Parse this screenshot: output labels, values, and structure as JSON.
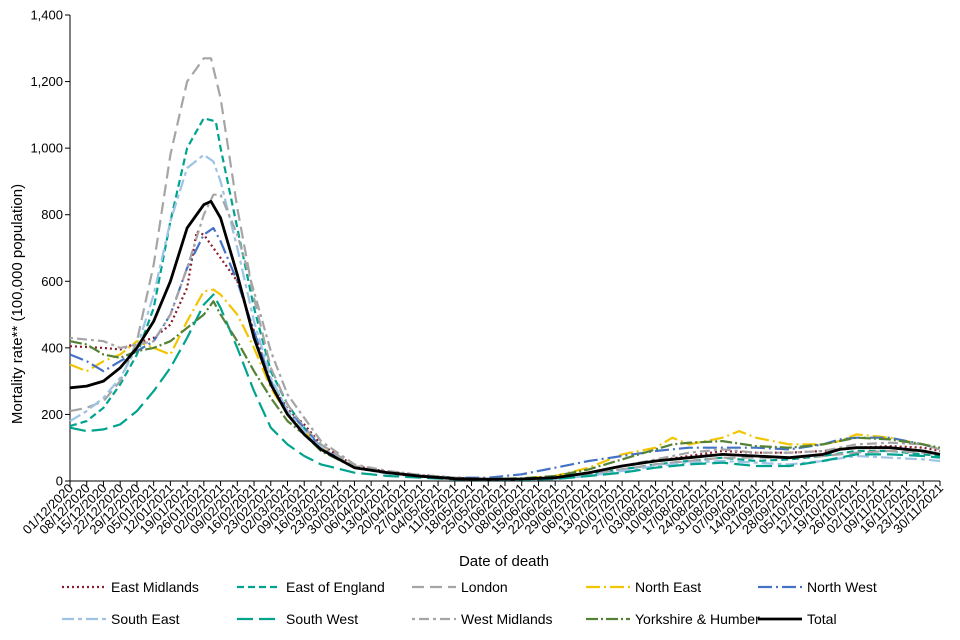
{
  "chart_data": {
    "type": "line",
    "title": "",
    "xlabel": "Date of death",
    "ylabel": "Mortality rate** (100,000 population)",
    "ylim": [
      0,
      1400
    ],
    "yticks": [
      0,
      200,
      400,
      600,
      800,
      1000,
      1200,
      1400
    ],
    "ytick_labels": [
      "0",
      "200",
      "400",
      "600",
      "800",
      "1,000",
      "1,200",
      "1,400"
    ],
    "x_day_range": [
      0,
      364
    ],
    "xtick_labels": [
      "01/12/2020",
      "08/12/2020",
      "15/12/2020",
      "22/12/2020",
      "29/12/2020",
      "05/01/2021",
      "12/01/2021",
      "19/01/2021",
      "26/01/2021",
      "02/02/2021",
      "09/02/2021",
      "16/02/2021",
      "23/02/2021",
      "02/03/2021",
      "09/03/2021",
      "16/03/2021",
      "23/03/2021",
      "30/03/2021",
      "06/04/2021",
      "13/04/2021",
      "20/04/2021",
      "27/04/2021",
      "04/05/2021",
      "11/05/2021",
      "18/05/2021",
      "25/05/2021",
      "01/06/2021",
      "08/06/2021",
      "15/06/2021",
      "22/06/2021",
      "29/06/2021",
      "06/07/2021",
      "13/07/2021",
      "20/07/2021",
      "27/07/2021",
      "03/08/2021",
      "10/08/2021",
      "17/08/2021",
      "24/08/2021",
      "31/08/2021",
      "07/09/2021",
      "14/09/2021",
      "21/09/2021",
      "28/09/2021",
      "05/10/2021",
      "12/10/2021",
      "19/10/2021",
      "26/10/2021",
      "02/11/2021",
      "09/11/2021",
      "16/11/2021",
      "23/11/2021",
      "30/11/2021"
    ],
    "legend_position": "bottom",
    "series": [
      {
        "name": "East Midlands",
        "color": "#8B1A2B",
        "dash": "2,3",
        "width": 2.2,
        "x": [
          0,
          14,
          21,
          28,
          35,
          42,
          49,
          53,
          56,
          60,
          63,
          70,
          77,
          84,
          91,
          98,
          105,
          119,
          133,
          147,
          161,
          175,
          189,
          203,
          217,
          231,
          245,
          259,
          273,
          287,
          301,
          315,
          329,
          343,
          357,
          364
        ],
        "y": [
          405,
          400,
          395,
          415,
          430,
          470,
          580,
          750,
          740,
          700,
          670,
          600,
          450,
          300,
          215,
          170,
          110,
          45,
          28,
          18,
          10,
          6,
          6,
          10,
          25,
          45,
          60,
          75,
          90,
          85,
          85,
          90,
          100,
          105,
          100,
          90
        ]
      },
      {
        "name": "East of England",
        "color": "#00A38E",
        "dash": "7,4",
        "width": 2.2,
        "x": [
          0,
          7,
          14,
          21,
          28,
          35,
          42,
          49,
          56,
          61,
          63,
          70,
          77,
          84,
          91,
          98,
          105,
          119,
          133,
          147,
          161,
          175,
          189,
          203,
          217,
          231,
          245,
          259,
          273,
          287,
          301,
          315,
          329,
          343,
          357,
          364
        ],
        "y": [
          165,
          180,
          220,
          290,
          380,
          520,
          780,
          1000,
          1090,
          1080,
          1000,
          760,
          520,
          330,
          230,
          160,
          100,
          40,
          25,
          15,
          8,
          5,
          5,
          8,
          20,
          35,
          50,
          60,
          70,
          60,
          65,
          75,
          90,
          90,
          80,
          75
        ]
      },
      {
        "name": "London",
        "color": "#A5A5A5",
        "dash": "12,6",
        "width": 2.2,
        "x": [
          0,
          7,
          14,
          21,
          28,
          35,
          42,
          49,
          56,
          59,
          63,
          70,
          77,
          84,
          91,
          98,
          105,
          119,
          133,
          147,
          161,
          175,
          189,
          203,
          217,
          231,
          245,
          259,
          273,
          287,
          301,
          315,
          329,
          343,
          357,
          364
        ],
        "y": [
          210,
          220,
          240,
          300,
          420,
          650,
          980,
          1200,
          1270,
          1270,
          1150,
          820,
          550,
          340,
          230,
          160,
          110,
          45,
          25,
          15,
          8,
          5,
          5,
          8,
          20,
          35,
          50,
          60,
          70,
          70,
          70,
          75,
          85,
          90,
          85,
          80
        ]
      },
      {
        "name": "North East",
        "color": "#F2C500",
        "dash": "14,4,2,4",
        "width": 2.2,
        "x": [
          0,
          7,
          14,
          21,
          28,
          35,
          42,
          49,
          56,
          60,
          63,
          70,
          77,
          84,
          91,
          98,
          105,
          119,
          133,
          147,
          161,
          175,
          189,
          203,
          217,
          231,
          245,
          252,
          259,
          266,
          273,
          280,
          287,
          301,
          315,
          322,
          329,
          343,
          357,
          364
        ],
        "y": [
          350,
          330,
          360,
          380,
          420,
          400,
          380,
          480,
          570,
          575,
          560,
          500,
          400,
          280,
          200,
          150,
          100,
          40,
          25,
          15,
          8,
          5,
          8,
          15,
          40,
          80,
          100,
          130,
          110,
          120,
          130,
          150,
          130,
          110,
          110,
          120,
          140,
          130,
          110,
          95
        ]
      },
      {
        "name": "North West",
        "color": "#4472C4",
        "dash": "14,4,2,4",
        "width": 2.2,
        "x": [
          0,
          7,
          14,
          21,
          28,
          35,
          42,
          49,
          56,
          60,
          63,
          70,
          77,
          84,
          91,
          98,
          105,
          119,
          133,
          147,
          161,
          175,
          189,
          203,
          217,
          231,
          245,
          259,
          273,
          287,
          301,
          315,
          322,
          329,
          343,
          357,
          364
        ],
        "y": [
          380,
          360,
          330,
          360,
          390,
          420,
          500,
          640,
          740,
          760,
          720,
          600,
          450,
          300,
          210,
          160,
          100,
          40,
          25,
          15,
          10,
          10,
          20,
          40,
          60,
          75,
          90,
          100,
          100,
          100,
          95,
          110,
          125,
          130,
          130,
          110,
          95
        ]
      },
      {
        "name": "South East",
        "color": "#9DC3E6",
        "dash": "12,4,4,4",
        "width": 2.2,
        "x": [
          0,
          7,
          14,
          21,
          28,
          35,
          42,
          49,
          56,
          60,
          63,
          70,
          77,
          84,
          91,
          98,
          105,
          119,
          133,
          147,
          161,
          175,
          189,
          203,
          217,
          231,
          245,
          259,
          273,
          287,
          301,
          315,
          329,
          343,
          357,
          364
        ],
        "y": [
          180,
          210,
          250,
          310,
          400,
          560,
          780,
          940,
          980,
          960,
          900,
          700,
          480,
          310,
          210,
          150,
          100,
          40,
          22,
          12,
          6,
          4,
          4,
          6,
          15,
          30,
          45,
          55,
          60,
          55,
          50,
          60,
          75,
          70,
          65,
          60
        ]
      },
      {
        "name": "South West",
        "color": "#00A38E",
        "dash": "16,6",
        "width": 2.2,
        "x": [
          0,
          7,
          14,
          21,
          28,
          35,
          42,
          49,
          56,
          60,
          63,
          70,
          77,
          84,
          91,
          98,
          105,
          119,
          133,
          147,
          161,
          175,
          189,
          203,
          217,
          231,
          245,
          259,
          273,
          287,
          301,
          315,
          329,
          343,
          357,
          364
        ],
        "y": [
          160,
          150,
          155,
          170,
          210,
          270,
          340,
          430,
          530,
          560,
          520,
          400,
          270,
          160,
          110,
          75,
          50,
          25,
          15,
          10,
          5,
          4,
          4,
          6,
          15,
          25,
          40,
          50,
          55,
          45,
          45,
          60,
          80,
          80,
          75,
          70
        ]
      },
      {
        "name": "West Midlands",
        "color": "#A5A5A5",
        "dash": "3,4,10,4",
        "width": 2.2,
        "x": [
          0,
          14,
          21,
          28,
          35,
          42,
          49,
          56,
          60,
          63,
          70,
          77,
          84,
          91,
          98,
          105,
          119,
          133,
          147,
          161,
          175,
          189,
          203,
          217,
          231,
          245,
          259,
          273,
          287,
          301,
          315,
          329,
          343,
          357,
          364
        ],
        "y": [
          430,
          420,
          400,
          410,
          420,
          500,
          640,
          800,
          860,
          860,
          740,
          570,
          390,
          260,
          190,
          120,
          50,
          30,
          18,
          10,
          6,
          6,
          10,
          25,
          45,
          65,
          85,
          95,
          85,
          85,
          90,
          110,
          115,
          110,
          95
        ]
      },
      {
        "name": "Yorkshire & Humber",
        "color": "#548235",
        "dash": "12,3,2,3",
        "width": 2.2,
        "x": [
          0,
          7,
          14,
          21,
          28,
          35,
          42,
          49,
          56,
          60,
          63,
          70,
          77,
          84,
          91,
          98,
          105,
          119,
          133,
          147,
          161,
          175,
          189,
          203,
          217,
          231,
          245,
          252,
          259,
          273,
          287,
          301,
          315,
          329,
          343,
          357,
          364
        ],
        "y": [
          420,
          410,
          380,
          370,
          390,
          400,
          420,
          460,
          500,
          540,
          500,
          420,
          330,
          250,
          180,
          140,
          90,
          40,
          25,
          15,
          8,
          6,
          8,
          15,
          35,
          65,
          95,
          110,
          115,
          120,
          105,
          100,
          110,
          130,
          125,
          110,
          100
        ]
      },
      {
        "name": "Total",
        "color": "#000000",
        "dash": "",
        "width": 2.8,
        "x": [
          0,
          7,
          14,
          21,
          28,
          35,
          42,
          49,
          56,
          59,
          63,
          70,
          77,
          84,
          91,
          98,
          105,
          119,
          133,
          147,
          161,
          175,
          189,
          203,
          217,
          231,
          245,
          259,
          273,
          287,
          301,
          315,
          322,
          329,
          343,
          357,
          364
        ],
        "y": [
          280,
          285,
          300,
          340,
          400,
          480,
          600,
          760,
          830,
          840,
          790,
          620,
          430,
          290,
          200,
          140,
          95,
          40,
          25,
          14,
          7,
          5,
          6,
          10,
          25,
          45,
          60,
          70,
          80,
          75,
          70,
          80,
          95,
          100,
          100,
          90,
          80
        ]
      }
    ]
  }
}
